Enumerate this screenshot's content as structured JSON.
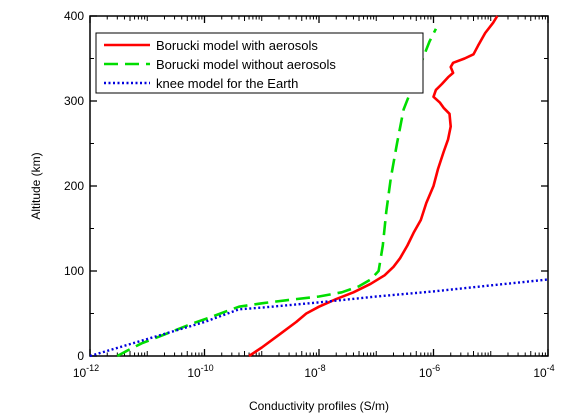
{
  "chart_data": {
    "type": "line",
    "xlabel": "Conductivity profiles (S/m)",
    "ylabel": "Altitude (km)",
    "x_scale": "log",
    "xlim": [
      1e-12,
      0.0001
    ],
    "ylim": [
      0,
      400
    ],
    "x_ticks": [
      {
        "base": "10",
        "exp": "-12"
      },
      {
        "base": "10",
        "exp": "-10"
      },
      {
        "base": "10",
        "exp": "-8"
      },
      {
        "base": "10",
        "exp": "-6"
      },
      {
        "base": "10",
        "exp": "-4"
      }
    ],
    "y_ticks": [
      "0",
      "100",
      "200",
      "300",
      "400"
    ],
    "legend_position": "top-left",
    "grid": false,
    "series": [
      {
        "name": "Borucki model with aerosols",
        "color": "#ff0000",
        "dash": "solid",
        "points": [
          [
            6e-10,
            0
          ],
          [
            1e-09,
            10
          ],
          [
            2e-09,
            25
          ],
          [
            4e-09,
            40
          ],
          [
            6e-09,
            50
          ],
          [
            1e-08,
            58
          ],
          [
            2e-08,
            67
          ],
          [
            4e-08,
            75
          ],
          [
            8e-08,
            85
          ],
          [
            1.4e-07,
            95
          ],
          [
            2e-07,
            105
          ],
          [
            2.6e-07,
            115
          ],
          [
            3.5e-07,
            130
          ],
          [
            4.5e-07,
            145
          ],
          [
            6e-07,
            160
          ],
          [
            7.5e-07,
            180
          ],
          [
            1e-06,
            200
          ],
          [
            1.2e-06,
            220
          ],
          [
            1.5e-06,
            240
          ],
          [
            1.8e-06,
            255
          ],
          [
            2e-06,
            270
          ],
          [
            1.9e-06,
            285
          ],
          [
            1.5e-06,
            292
          ],
          [
            1.3e-06,
            298
          ],
          [
            1e-06,
            305
          ],
          [
            1.1e-06,
            313
          ],
          [
            1.4e-06,
            320
          ],
          [
            1.8e-06,
            328
          ],
          [
            2.2e-06,
            333
          ],
          [
            2e-06,
            340
          ],
          [
            2.2e-06,
            345
          ],
          [
            3.5e-06,
            350
          ],
          [
            5e-06,
            355
          ],
          [
            6e-06,
            365
          ],
          [
            8e-06,
            380
          ],
          [
            1.1e-05,
            392
          ],
          [
            1.3e-05,
            400
          ]
        ]
      },
      {
        "name": "Borucki model without aerosols",
        "color": "#00dd00",
        "dash": "dashed",
        "points": [
          [
            3e-12,
            0
          ],
          [
            5e-12,
            8
          ],
          [
            8e-12,
            15
          ],
          [
            1.5e-11,
            22
          ],
          [
            3e-11,
            30
          ],
          [
            6e-11,
            38
          ],
          [
            1.2e-10,
            45
          ],
          [
            2.5e-10,
            53
          ],
          [
            4e-10,
            58
          ],
          [
            1e-09,
            62
          ],
          [
            3e-09,
            66
          ],
          [
            1e-08,
            70
          ],
          [
            2.5e-08,
            75
          ],
          [
            5e-08,
            82
          ],
          [
            8e-08,
            90
          ],
          [
            1.1e-07,
            100
          ],
          [
            1.3e-07,
            130
          ],
          [
            1.5e-07,
            170
          ],
          [
            1.8e-07,
            210
          ],
          [
            2.3e-07,
            250
          ],
          [
            3e-07,
            290
          ],
          [
            4.5e-07,
            320
          ],
          [
            6.5e-07,
            350
          ],
          [
            8.5e-07,
            370
          ],
          [
            1.1e-06,
            385
          ]
        ]
      },
      {
        "name": "knee model for the Earth",
        "color": "#0000dd",
        "dash": "dotted",
        "points": [
          [
            1e-12,
            0
          ],
          [
            1e-11,
            20
          ],
          [
            1e-10,
            40
          ],
          [
            4e-10,
            55
          ],
          [
            1e-09,
            57
          ],
          [
            1e-08,
            63
          ],
          [
            1e-07,
            70
          ],
          [
            1e-06,
            76
          ],
          [
            1e-05,
            83
          ],
          [
            0.0001,
            90
          ]
        ]
      }
    ]
  }
}
